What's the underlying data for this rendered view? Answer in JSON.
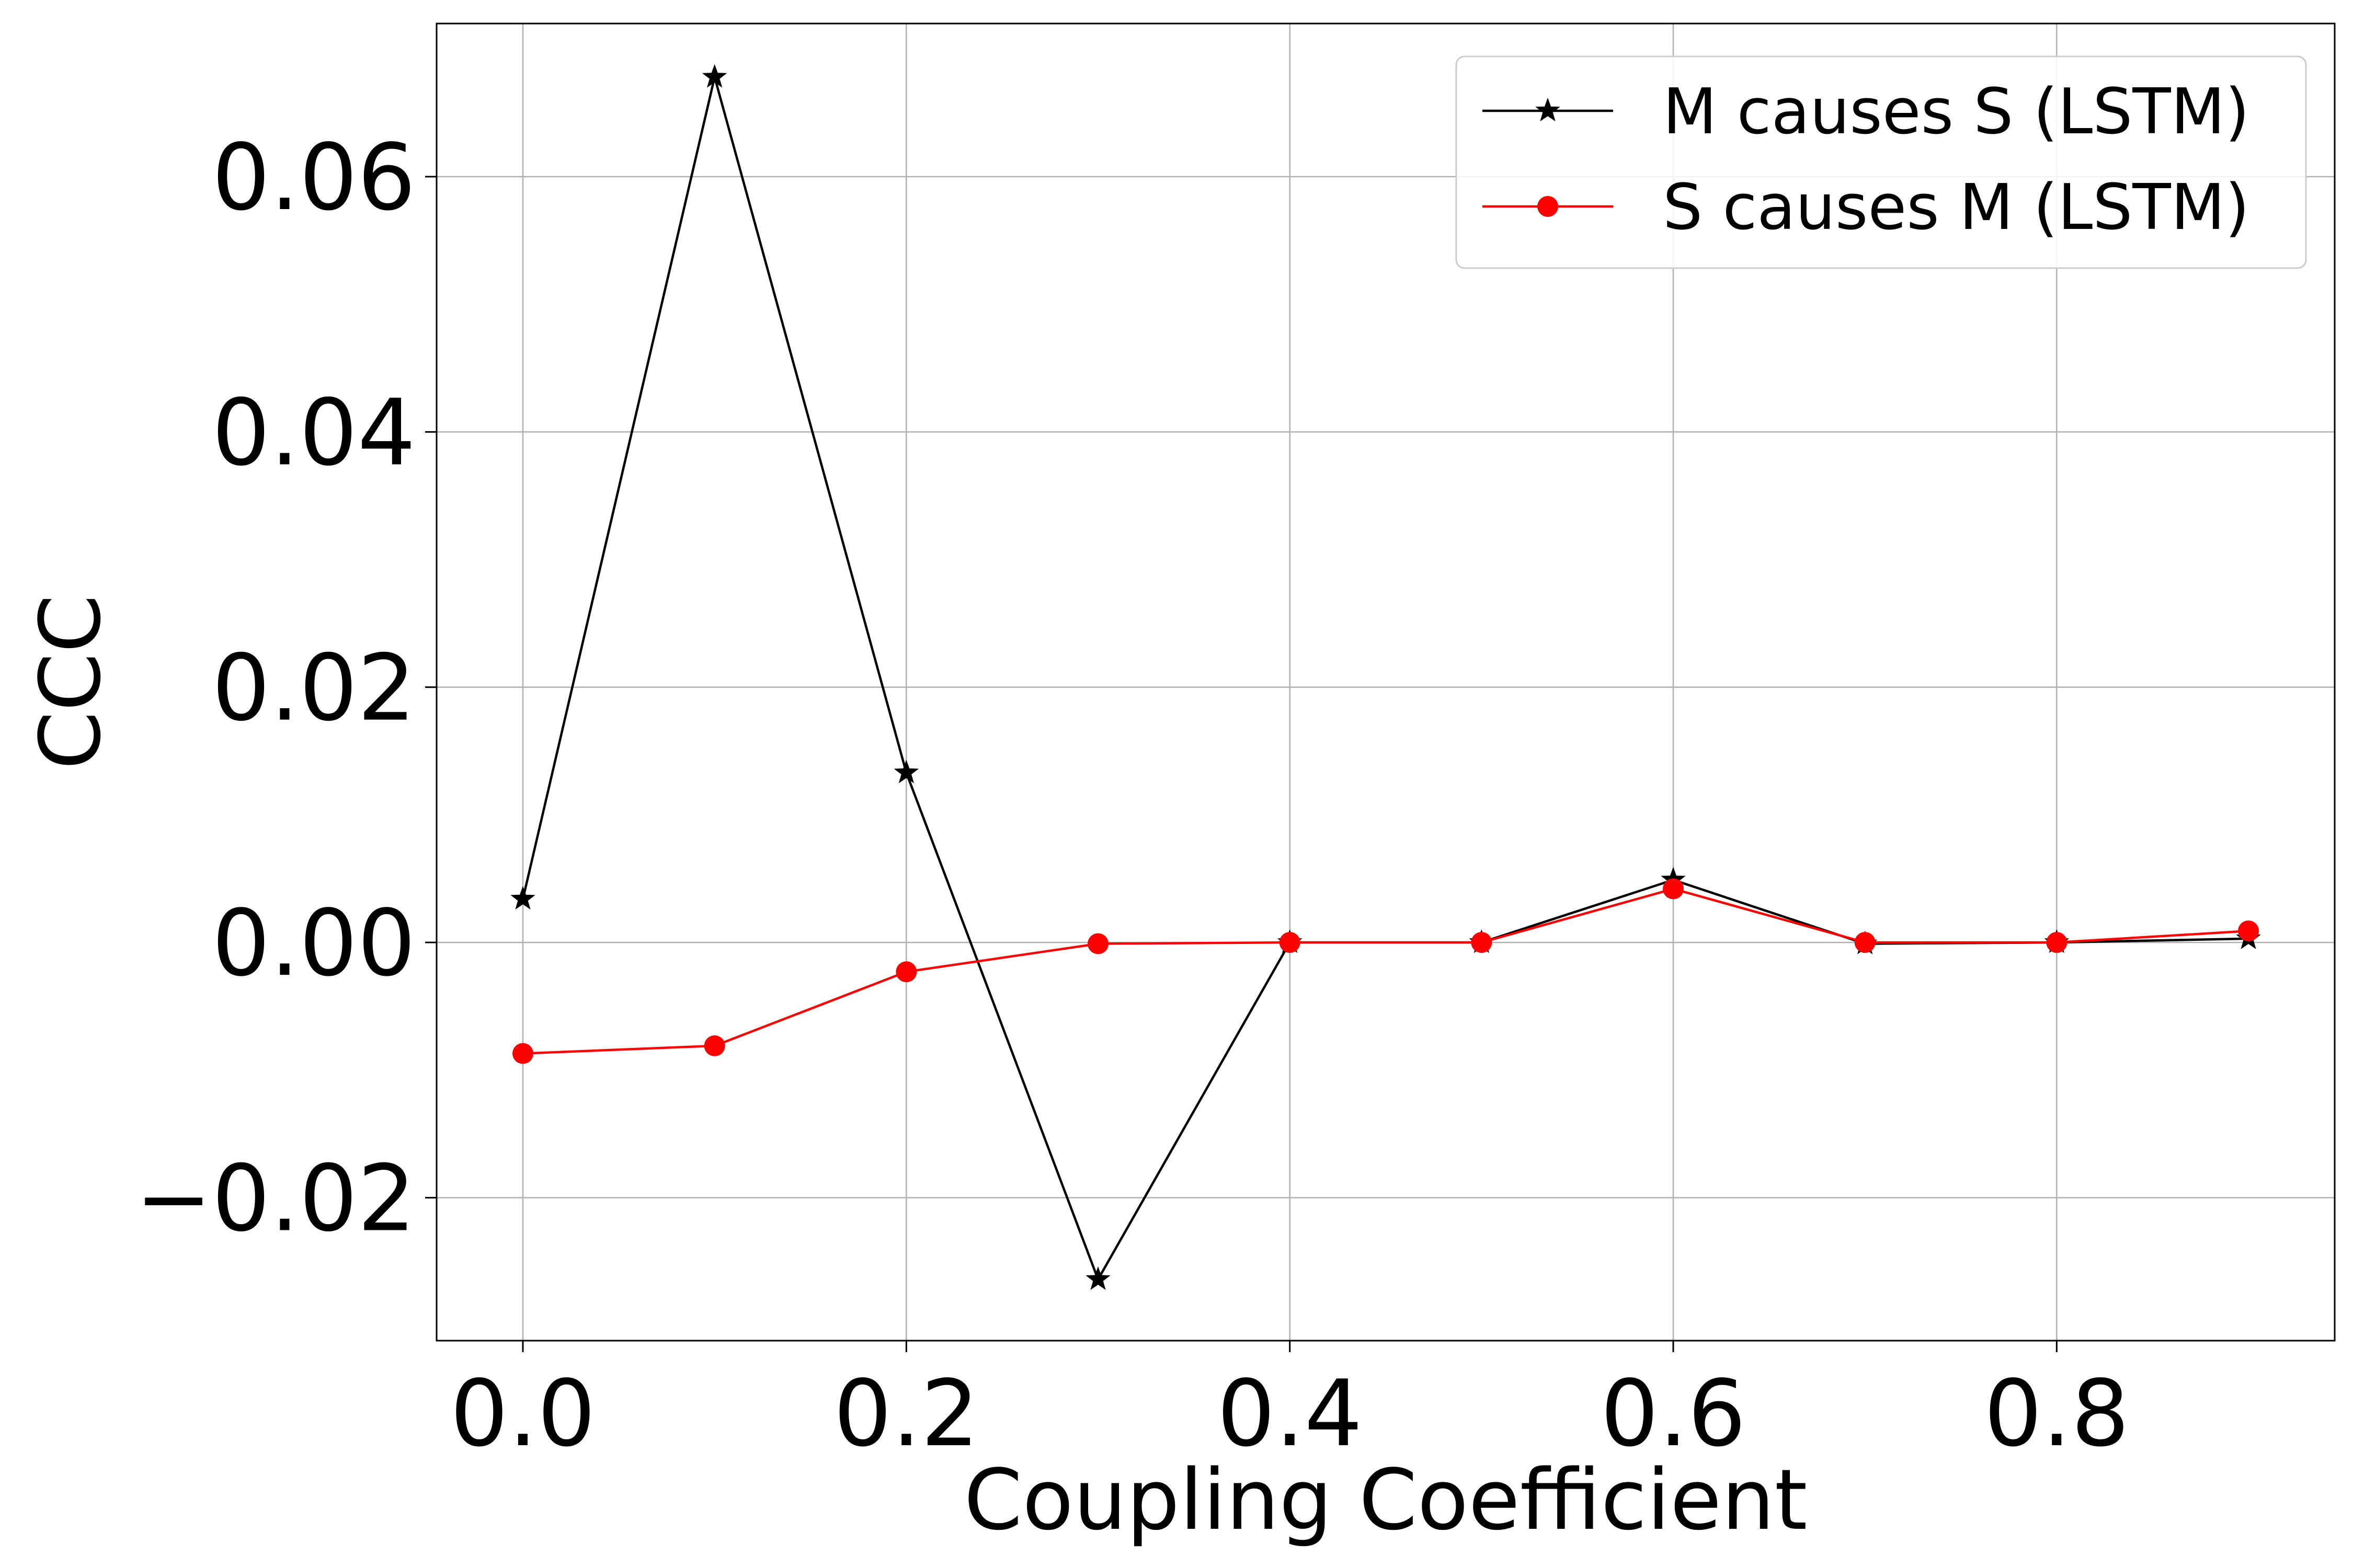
{
  "chart_data": {
    "type": "line",
    "title": "",
    "xlabel": "Coupling Coefficient",
    "ylabel": "CCC",
    "xlim": [
      -0.045,
      0.945
    ],
    "ylim": [
      -0.0312,
      0.072
    ],
    "xticks": [
      0.0,
      0.2,
      0.4,
      0.6,
      0.8
    ],
    "xtick_labels": [
      "0.0",
      "0.2",
      "0.4",
      "0.6",
      "0.8"
    ],
    "yticks": [
      -0.02,
      0.0,
      0.02,
      0.04,
      0.06
    ],
    "ytick_labels": [
      "−0.02",
      "0.00",
      "0.02",
      "0.04",
      "0.06"
    ],
    "grid": true,
    "legend_position": "top-right",
    "x": [
      0.0,
      0.1,
      0.2,
      0.3,
      0.4,
      0.5,
      0.6,
      0.7,
      0.8,
      0.9
    ],
    "series": [
      {
        "name": "M causes S (LSTM)",
        "color": "#000000",
        "marker": "star",
        "values": [
          0.0034,
          0.0678,
          0.0133,
          -0.0264,
          0.0,
          0.0,
          0.0049,
          -0.0001,
          0.0,
          0.0003
        ]
      },
      {
        "name": "S causes M (LSTM)",
        "color": "#ff0000",
        "marker": "circle",
        "values": [
          -0.0087,
          -0.0081,
          -0.0023,
          -0.0001,
          0.0,
          0.0,
          0.0042,
          0.0,
          0.0,
          0.0009
        ]
      }
    ]
  }
}
